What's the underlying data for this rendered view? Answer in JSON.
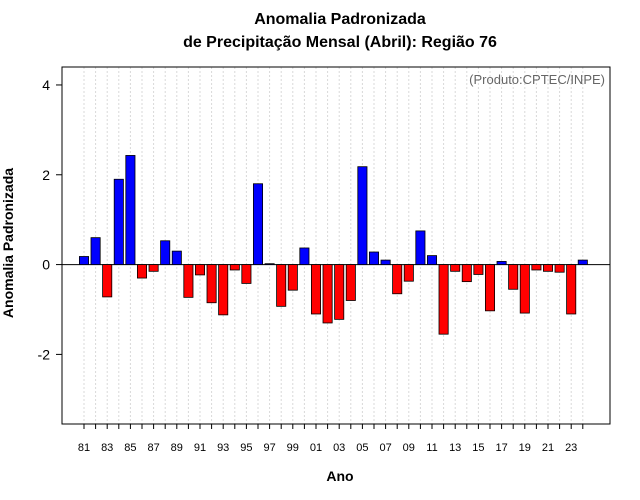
{
  "chart_data": {
    "type": "bar",
    "title_line1": "Anomalia Padronizada",
    "title_line2": "de Precipitação Mensal (Abril): Região 76",
    "xlabel": "Ano",
    "ylabel": "Anomalia Padronizada",
    "annotation": "(Produto:CPTEC/INPE)",
    "ylim": [
      -3.55,
      4.4
    ],
    "yticks": [
      -2,
      0,
      2,
      4
    ],
    "yticks_labels": [
      "-2",
      "0",
      "2",
      "4"
    ],
    "grid": true,
    "categories": [
      "81",
      "82",
      "83",
      "84",
      "85",
      "86",
      "87",
      "88",
      "89",
      "90",
      "91",
      "92",
      "93",
      "94",
      "95",
      "96",
      "97",
      "98",
      "99",
      "00",
      "01",
      "02",
      "03",
      "04",
      "05",
      "06",
      "07",
      "08",
      "09",
      "10",
      "11",
      "12",
      "13",
      "14",
      "15",
      "16",
      "17",
      "18",
      "19",
      "20",
      "21",
      "22",
      "23",
      "24"
    ],
    "tick_labels": [
      "81",
      "83",
      "85",
      "87",
      "89",
      "91",
      "93",
      "95",
      "97",
      "99",
      "01",
      "03",
      "05",
      "07",
      "09",
      "11",
      "13",
      "15",
      "17",
      "19",
      "21",
      "23"
    ],
    "values": [
      0.18,
      0.6,
      -0.72,
      1.9,
      2.43,
      -0.3,
      -0.15,
      0.53,
      0.3,
      -0.73,
      -0.23,
      -0.85,
      -1.12,
      -0.12,
      -0.42,
      1.8,
      0.02,
      -0.93,
      -0.57,
      0.37,
      -1.1,
      -1.3,
      -1.22,
      -0.8,
      2.18,
      0.28,
      0.1,
      -0.65,
      -0.37,
      0.75,
      0.2,
      -1.55,
      -0.15,
      -0.38,
      -0.22,
      -1.03,
      0.07,
      -0.55,
      -1.08,
      -0.12,
      -0.15,
      -0.17,
      -1.1,
      0.1
    ],
    "positive_color": "#0000ff",
    "negative_color": "#ff0000"
  }
}
